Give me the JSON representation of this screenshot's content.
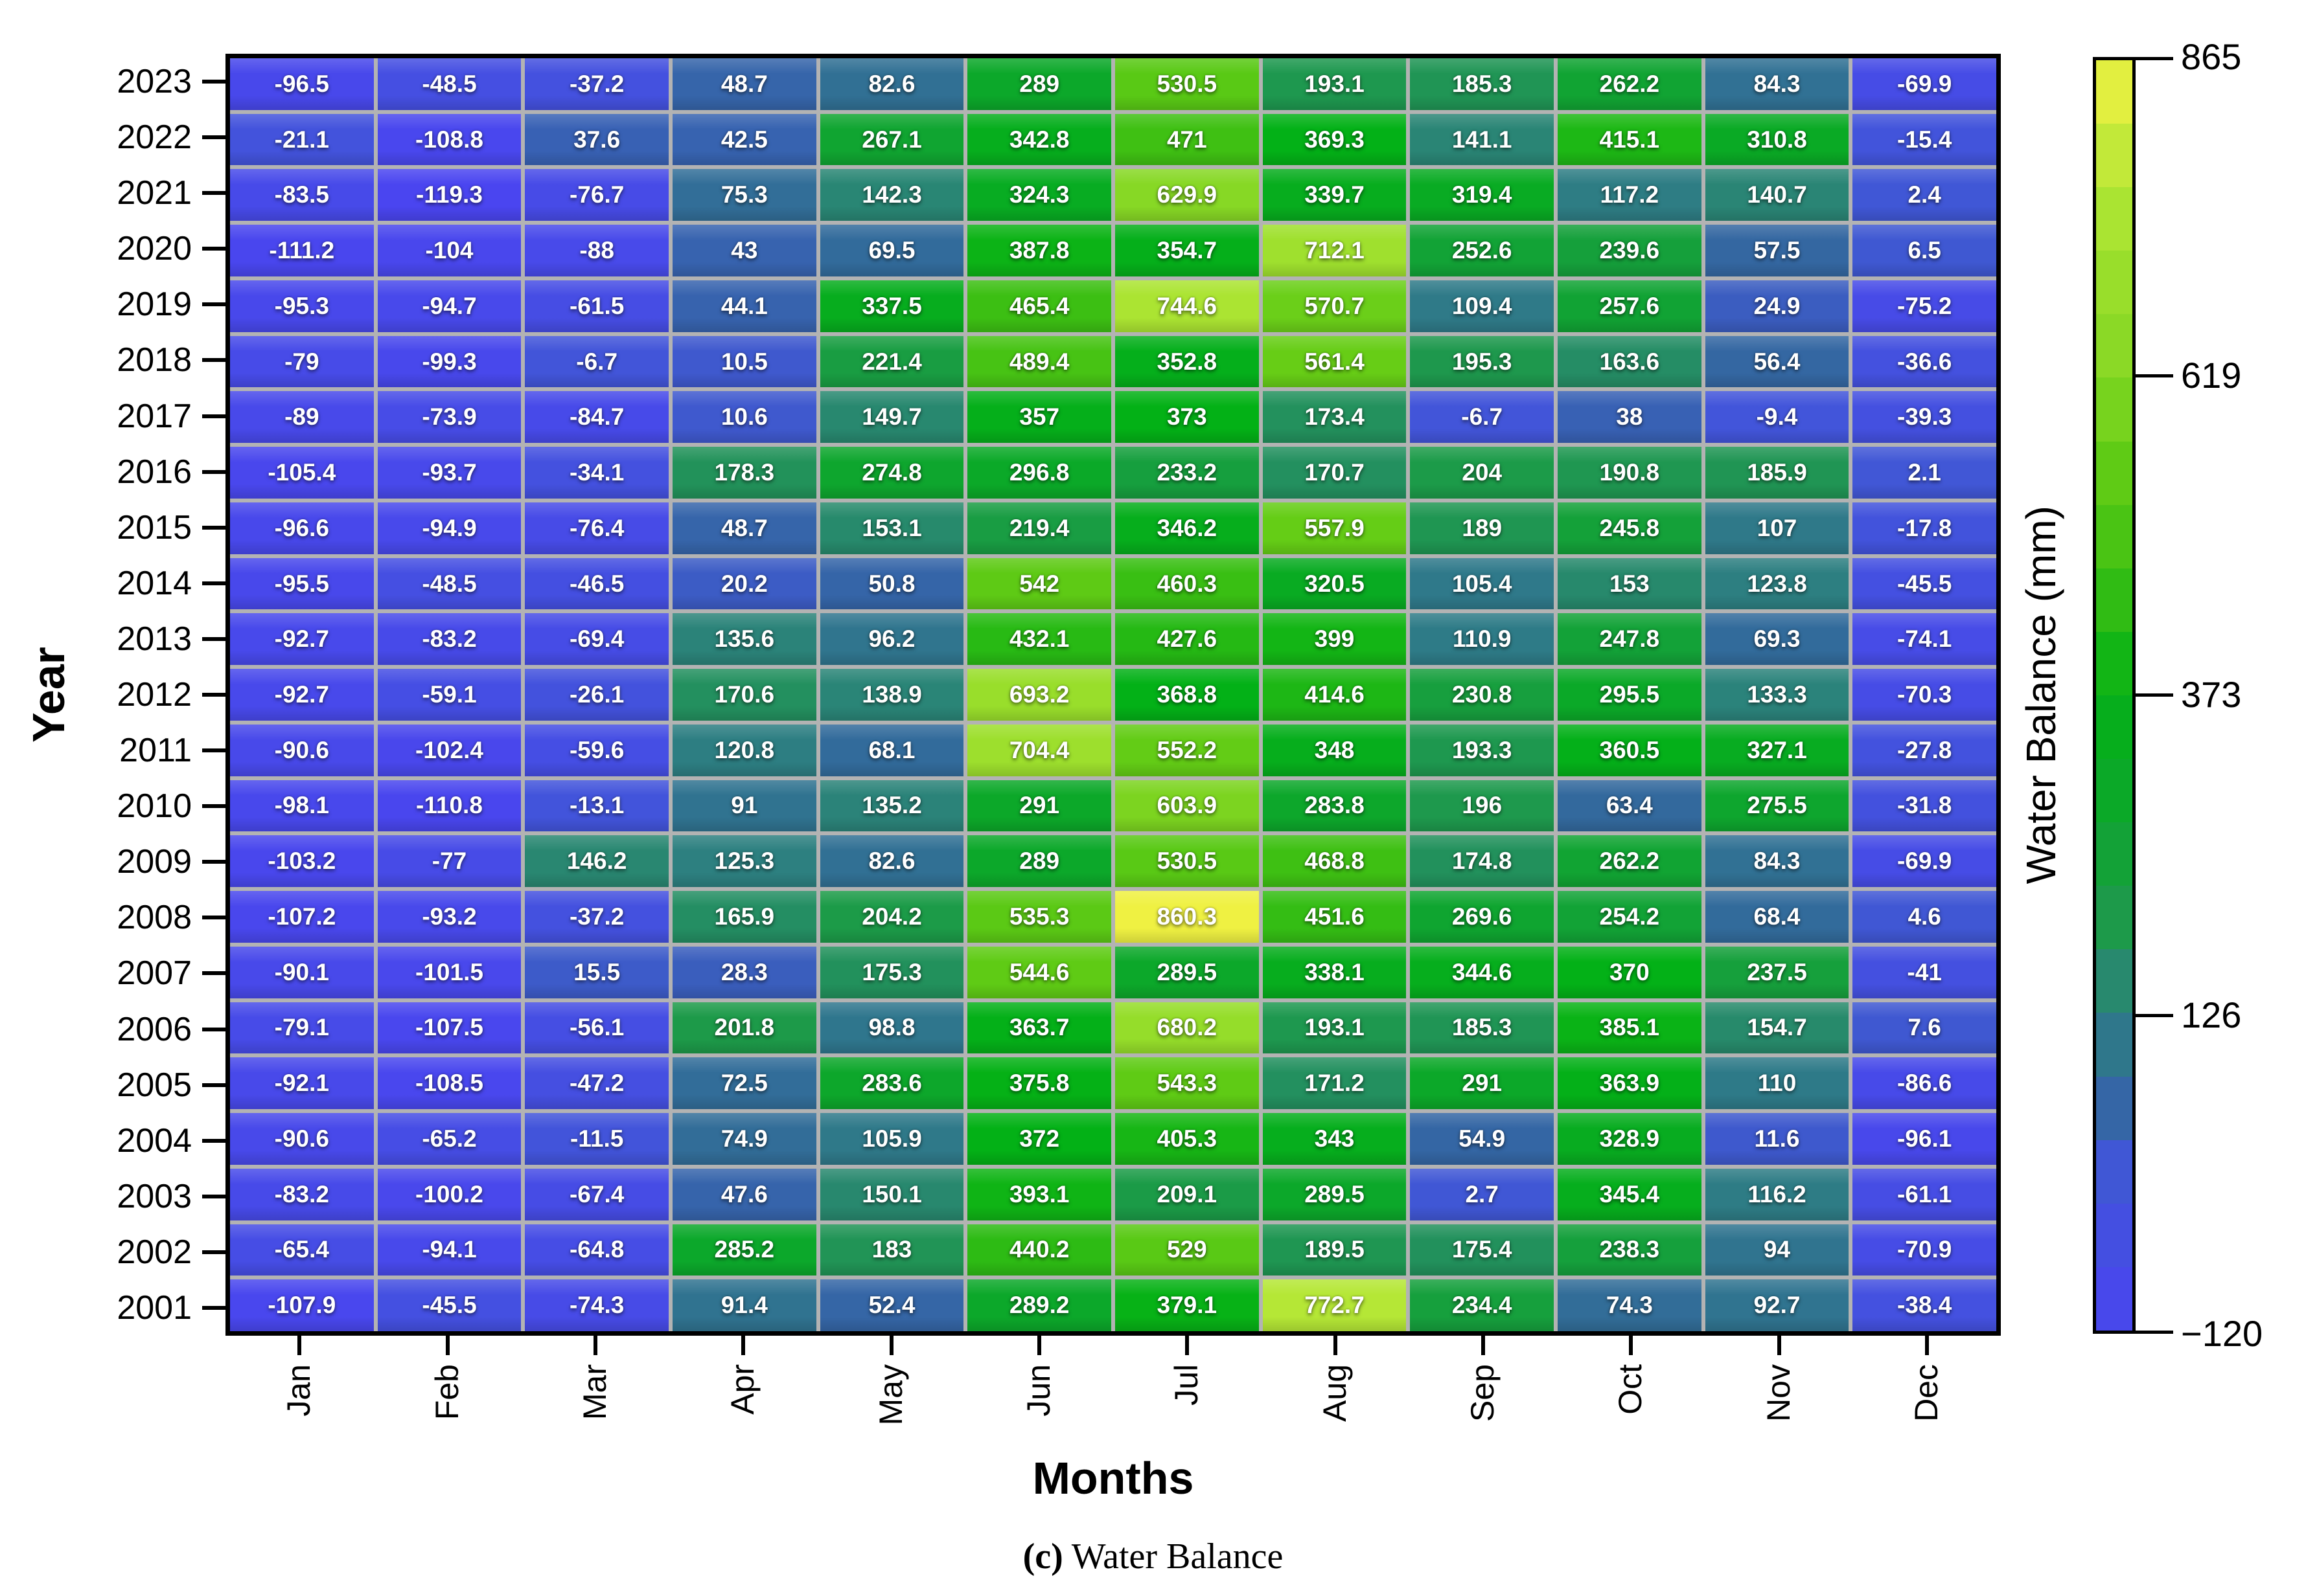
{
  "figure": {
    "y_axis_title": "Year",
    "x_axis_title": "Months",
    "colorbar_title": "Water Balance (mm)",
    "caption_label": "(c)",
    "caption_text": " Water Balance"
  },
  "chart_data": {
    "type": "heatmap",
    "xlabel": "Months",
    "ylabel": "Year",
    "legend_title": "Water Balance (mm)",
    "x_categories": [
      "Jan",
      "Feb",
      "Mar",
      "Apr",
      "May",
      "Jun",
      "Jul",
      "Aug",
      "Sep",
      "Oct",
      "Nov",
      "Dec"
    ],
    "y_categories": [
      2023,
      2022,
      2021,
      2020,
      2019,
      2018,
      2017,
      2016,
      2015,
      2014,
      2013,
      2012,
      2011,
      2010,
      2009,
      2008,
      2007,
      2006,
      2005,
      2004,
      2003,
      2002,
      2001
    ],
    "values": [
      [
        -96.5,
        -48.5,
        -37.2,
        48.7,
        82.6,
        289,
        530.5,
        193.1,
        185.3,
        262.2,
        84.3,
        -69.9
      ],
      [
        -21.1,
        -108.8,
        37.6,
        42.5,
        267.1,
        342.8,
        471,
        369.3,
        141.1,
        415.1,
        310.8,
        -15.4
      ],
      [
        -83.5,
        -119.3,
        -76.7,
        75.3,
        142.3,
        324.3,
        629.9,
        339.7,
        319.4,
        117.2,
        140.7,
        2.4
      ],
      [
        -111.2,
        -104,
        -88,
        43,
        69.5,
        387.8,
        354.7,
        712.1,
        252.6,
        239.6,
        57.5,
        6.5
      ],
      [
        -95.3,
        -94.7,
        -61.5,
        44.1,
        337.5,
        465.4,
        744.6,
        570.7,
        109.4,
        257.6,
        24.9,
        -75.2
      ],
      [
        -79,
        -99.3,
        -6.7,
        10.5,
        221.4,
        489.4,
        352.8,
        561.4,
        195.3,
        163.6,
        56.4,
        -36.6
      ],
      [
        -89,
        -73.9,
        -84.7,
        10.6,
        149.7,
        357,
        373,
        173.4,
        -6.7,
        38,
        -9.4,
        -39.3
      ],
      [
        -105.4,
        -93.7,
        -34.1,
        178.3,
        274.8,
        296.8,
        233.2,
        170.7,
        204,
        190.8,
        185.9,
        2.1
      ],
      [
        -96.6,
        -94.9,
        -76.4,
        48.7,
        153.1,
        219.4,
        346.2,
        557.9,
        189,
        245.8,
        107,
        -17.8
      ],
      [
        -95.5,
        -48.5,
        -46.5,
        20.2,
        50.8,
        542,
        460.3,
        320.5,
        105.4,
        153,
        123.8,
        -45.5
      ],
      [
        -92.7,
        -83.2,
        -69.4,
        135.6,
        96.2,
        432.1,
        427.6,
        399,
        110.9,
        247.8,
        69.3,
        -74.1
      ],
      [
        -92.7,
        -59.1,
        -26.1,
        170.6,
        138.9,
        693.2,
        368.8,
        414.6,
        230.8,
        295.5,
        133.3,
        -70.3
      ],
      [
        -90.6,
        -102.4,
        -59.6,
        120.8,
        68.1,
        704.4,
        552.2,
        348,
        193.3,
        360.5,
        327.1,
        -27.8
      ],
      [
        -98.1,
        -110.8,
        -13.1,
        91,
        135.2,
        291,
        603.9,
        283.8,
        196,
        63.4,
        275.5,
        -31.8
      ],
      [
        -103.2,
        -77,
        146.2,
        125.3,
        82.6,
        289,
        530.5,
        468.8,
        174.8,
        262.2,
        84.3,
        -69.9
      ],
      [
        -107.2,
        -93.2,
        -37.2,
        165.9,
        204.2,
        535.3,
        860.3,
        451.6,
        269.6,
        254.2,
        68.4,
        4.6
      ],
      [
        -90.1,
        -101.5,
        15.5,
        28.3,
        175.3,
        544.6,
        289.5,
        338.1,
        344.6,
        370,
        237.5,
        -41
      ],
      [
        -79.1,
        -107.5,
        -56.1,
        201.8,
        98.8,
        363.7,
        680.2,
        193.1,
        185.3,
        385.1,
        154.7,
        7.6
      ],
      [
        -92.1,
        -108.5,
        -47.2,
        72.5,
        283.6,
        375.8,
        543.3,
        171.2,
        291,
        363.9,
        110,
        -86.6
      ],
      [
        -90.6,
        -65.2,
        -11.5,
        74.9,
        105.9,
        372,
        405.3,
        343,
        54.9,
        328.9,
        11.6,
        -96.1
      ],
      [
        -83.2,
        -100.2,
        -67.4,
        47.6,
        150.1,
        393.1,
        209.1,
        289.5,
        2.7,
        345.4,
        116.2,
        -61.1
      ],
      [
        -65.4,
        -94.1,
        -64.8,
        285.2,
        183,
        440.2,
        529,
        189.5,
        175.4,
        238.3,
        94,
        -70.9
      ],
      [
        -107.9,
        -45.5,
        -74.3,
        91.4,
        52.4,
        289.2,
        379.1,
        772.7,
        234.4,
        74.3,
        92.7,
        -38.4
      ]
    ],
    "colorbar": {
      "vmin": -120,
      "vmax": 865,
      "steps": 20,
      "ticks": [
        {
          "label": "865",
          "value": 865
        },
        {
          "label": "619",
          "value": 619
        },
        {
          "label": "373",
          "value": 373
        },
        {
          "label": "126",
          "value": 126
        },
        {
          "label": "−120",
          "value": -120
        }
      ],
      "color_stops": [
        [
          -120,
          "#4a45f0"
        ],
        [
          0,
          "#4156d8"
        ],
        [
          60,
          "#33689f"
        ],
        [
          126,
          "#2d8080"
        ],
        [
          200,
          "#1d9a4a"
        ],
        [
          280,
          "#0da72c"
        ],
        [
          373,
          "#03b116"
        ],
        [
          470,
          "#3fc013"
        ],
        [
          560,
          "#66cd16"
        ],
        [
          619,
          "#84d724"
        ],
        [
          700,
          "#9bdf2c"
        ],
        [
          772,
          "#b5e736"
        ],
        [
          865,
          "#f2f243"
        ]
      ]
    }
  }
}
